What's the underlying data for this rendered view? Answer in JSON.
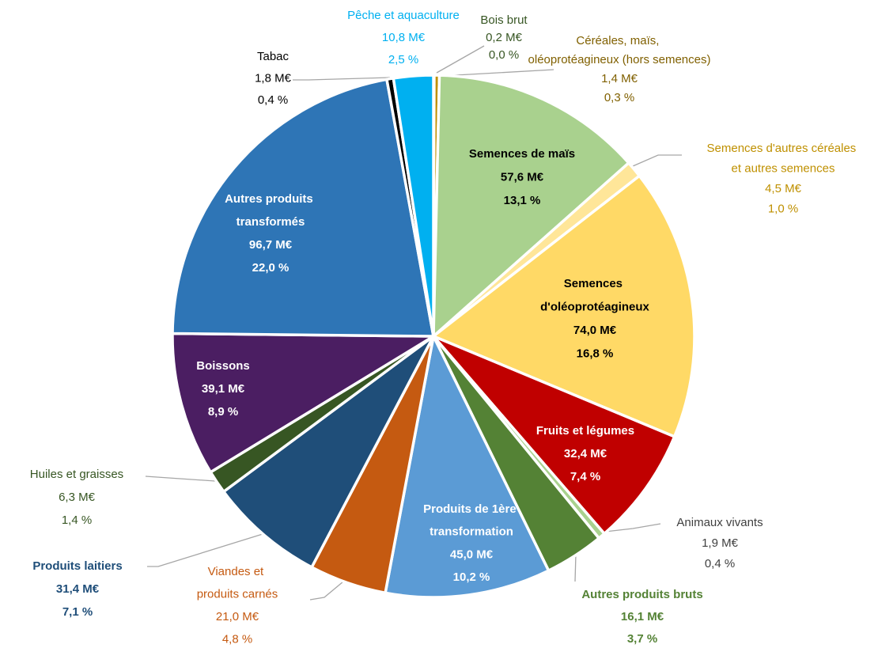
{
  "chart_data": {
    "type": "pie",
    "categories": [
      "Bois brut",
      "Céréales, maïs, oléoprotéagineux (hors semences)",
      "Semences de maïs",
      "Semences d'autres céréales et autres semences",
      "Semences d'oléoprotéagineux",
      "Fruits et légumes",
      "Animaux vivants",
      "Autres produits bruts",
      "Produits de 1ère transformation",
      "Viandes et produits carnés",
      "Produits laitiers",
      "Huiles et graisses",
      "Boissons",
      "Autres produits transformés",
      "Tabac",
      "Pêche et aquaculture"
    ],
    "values": [
      0.2,
      1.4,
      57.6,
      4.5,
      74.0,
      32.4,
      1.9,
      16.1,
      45.0,
      21.0,
      31.4,
      6.3,
      39.1,
      96.7,
      1.8,
      10.8
    ],
    "value_labels": [
      "0,2 M€",
      "1,4 M€",
      "57,6 M€",
      "4,5 M€",
      "74,0 M€",
      "32,4 M€",
      "1,9 M€",
      "16,1 M€",
      "45,0 M€",
      "21,0 M€",
      "31,4 M€",
      "6,3 M€",
      "39,1 M€",
      "96,7 M€",
      "1,8 M€",
      "10,8 M€"
    ],
    "percents": [
      0.0,
      0.3,
      13.1,
      1.0,
      16.8,
      7.4,
      0.4,
      3.7,
      10.2,
      4.8,
      7.1,
      1.4,
      8.9,
      22.0,
      0.4,
      2.5
    ],
    "percent_labels": [
      "0,0 %",
      "0,3 %",
      "13,1 %",
      "1,0 %",
      "16,8 %",
      "7,4 %",
      "0,4 %",
      "3,7 %",
      "10,2 %",
      "4,8 %",
      "7,1 %",
      "1,4 %",
      "8,9 %",
      "22,0 %",
      "0,4 %",
      "2,5 %"
    ],
    "colors": [
      "#7f6000",
      "#bf9000",
      "#a9d18e",
      "#ffe699",
      "#ffd966",
      "#c00000",
      "#a9d18e",
      "#548235",
      "#5b9bd5",
      "#c55a11",
      "#1f4e79",
      "#375623",
      "#4b1e62",
      "#2e75b6",
      "#000000",
      "#00b0f0"
    ]
  }
}
